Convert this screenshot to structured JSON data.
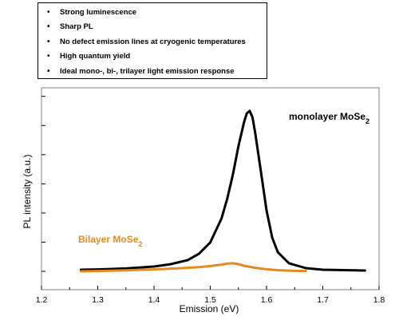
{
  "bullets": [
    "Strong luminescence",
    "Sharp PL",
    "No defect emission lines at cryogenic temperatures",
    "High quantum yield",
    "Ideal mono-, bi-, trilayer light emission response"
  ],
  "chart_data": {
    "type": "line",
    "xlabel": "Emission (eV)",
    "ylabel": "PL intensity (a.u.)",
    "xlim": [
      1.2,
      1.8
    ],
    "xticks": [
      "1.2",
      "1.3",
      "1.4",
      "1.5",
      "1.6",
      "1.7",
      "1.8"
    ],
    "ylim": [
      0,
      1.1
    ],
    "yaxis_ticks": 10,
    "grid": false,
    "annotations": [
      {
        "text": "monolayer MoSe",
        "sub": "2",
        "color": "#000000"
      },
      {
        "text": "Bilayer MoSe",
        "sub": "2",
        "color": "#E8891E"
      }
    ],
    "series": [
      {
        "name": "monolayer MoSe2",
        "color": "#000000",
        "x": [
          1.27,
          1.3,
          1.35,
          1.4,
          1.43,
          1.46,
          1.48,
          1.5,
          1.52,
          1.53,
          1.54,
          1.55,
          1.56,
          1.565,
          1.57,
          1.575,
          1.58,
          1.59,
          1.6,
          1.61,
          1.62,
          1.64,
          1.67,
          1.7,
          1.775
        ],
        "y": [
          0.01,
          0.012,
          0.018,
          0.03,
          0.045,
          0.07,
          0.11,
          0.18,
          0.33,
          0.45,
          0.6,
          0.78,
          0.93,
          0.985,
          1.0,
          0.96,
          0.86,
          0.62,
          0.38,
          0.21,
          0.12,
          0.05,
          0.02,
          0.01,
          0.005
        ]
      },
      {
        "name": "Bilayer MoSe2",
        "color": "#E8891E",
        "x": [
          1.27,
          1.3,
          1.35,
          1.4,
          1.45,
          1.48,
          1.5,
          1.52,
          1.53,
          1.54,
          1.55,
          1.56,
          1.58,
          1.6,
          1.62,
          1.65,
          1.67
        ],
        "y": [
          0.0,
          0.002,
          0.006,
          0.012,
          0.02,
          0.026,
          0.033,
          0.042,
          0.048,
          0.05,
          0.045,
          0.035,
          0.022,
          0.013,
          0.007,
          0.003,
          0.002
        ]
      }
    ]
  }
}
